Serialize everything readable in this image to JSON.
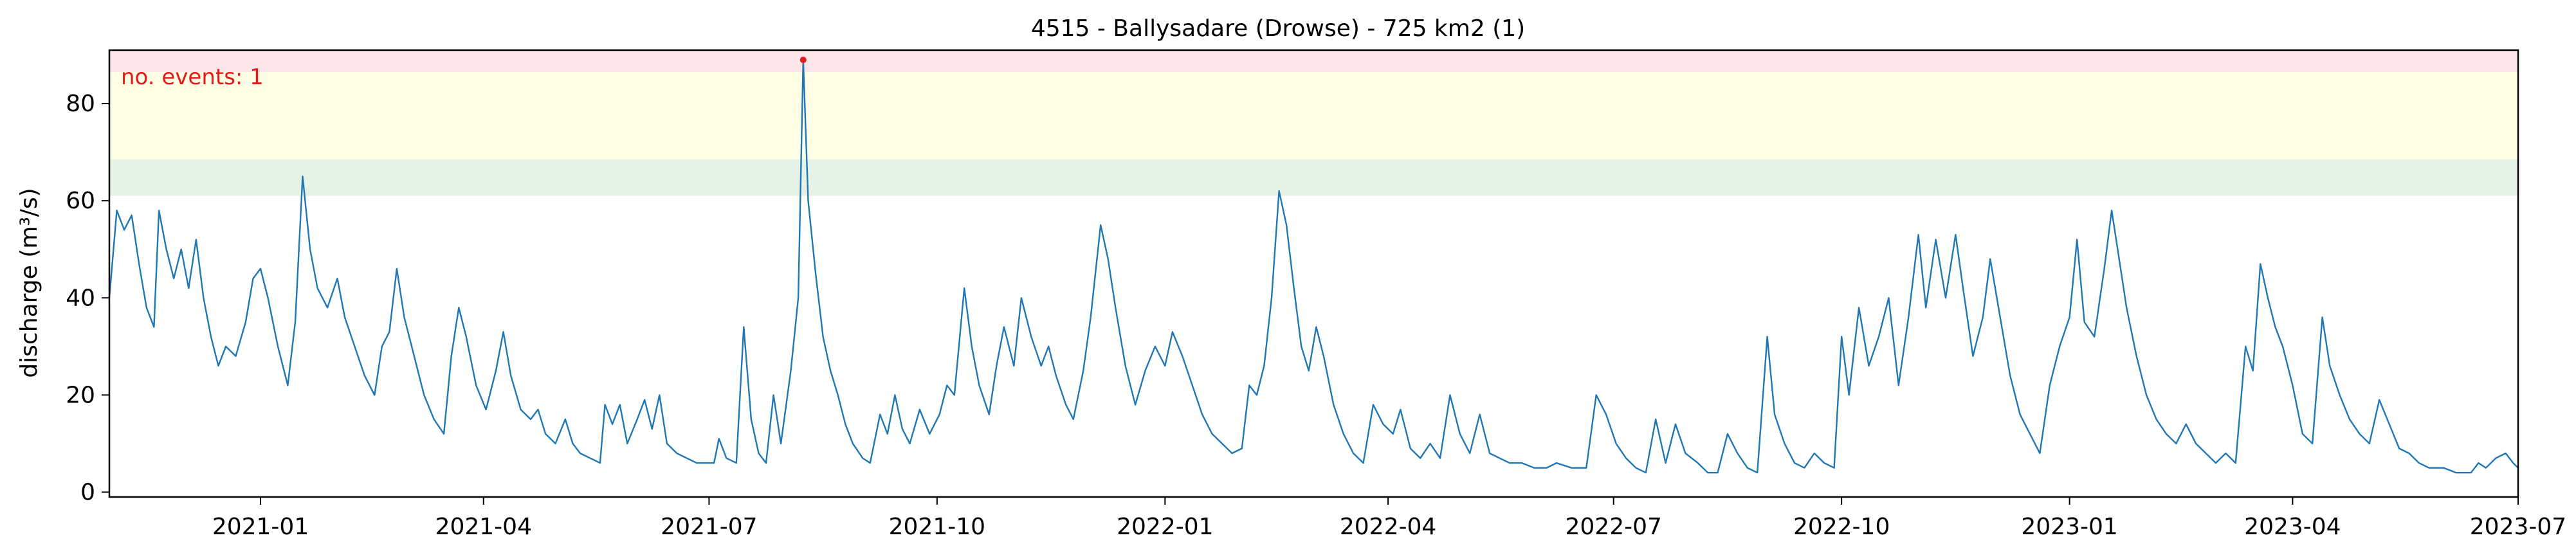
{
  "chart_data": {
    "type": "line",
    "title": "4515 - Ballysadare (Drowse) - 725 km2 (1)",
    "ylabel": "discharge (m³/s)",
    "xlabel": "",
    "xlim": [
      "2020-11-01",
      "2023-07-01"
    ],
    "ylim": [
      -1,
      91
    ],
    "grid": false,
    "xticks": [
      "2021-01-01",
      "2021-04-01",
      "2021-07-01",
      "2021-10-01",
      "2022-01-01",
      "2022-04-01",
      "2022-07-01",
      "2022-10-01",
      "2023-01-01",
      "2023-04-01",
      "2023-07-01"
    ],
    "xtick_labels": [
      "2021-01",
      "2021-04",
      "2021-07",
      "2021-10",
      "2022-01",
      "2022-04",
      "2022-07",
      "2022-10",
      "2023-01",
      "2023-04",
      "2023-07"
    ],
    "yticks": [
      0,
      20,
      40,
      60,
      80
    ],
    "annotation": "no. events: 1",
    "threshold_bands": [
      {
        "from": 61,
        "to": 68.5,
        "color": "#e6f2e6"
      },
      {
        "from": 68.5,
        "to": 86.5,
        "color": "#ffffe6"
      },
      {
        "from": 86.5,
        "to": 91,
        "color": "#fde6ea"
      }
    ],
    "events": [
      {
        "x": "2021-08-08",
        "y": 89
      }
    ],
    "series": [
      {
        "color": "#1f77b4",
        "points": [
          [
            "2020-11-01",
            40
          ],
          [
            "2020-11-04",
            58
          ],
          [
            "2020-11-07",
            54
          ],
          [
            "2020-11-10",
            57
          ],
          [
            "2020-11-13",
            47
          ],
          [
            "2020-11-16",
            38
          ],
          [
            "2020-11-19",
            34
          ],
          [
            "2020-11-21",
            58
          ],
          [
            "2020-11-24",
            50
          ],
          [
            "2020-11-27",
            44
          ],
          [
            "2020-11-30",
            50
          ],
          [
            "2020-12-03",
            42
          ],
          [
            "2020-12-06",
            52
          ],
          [
            "2020-12-09",
            40
          ],
          [
            "2020-12-12",
            32
          ],
          [
            "2020-12-15",
            26
          ],
          [
            "2020-12-18",
            30
          ],
          [
            "2020-12-22",
            28
          ],
          [
            "2020-12-26",
            35
          ],
          [
            "2020-12-29",
            44
          ],
          [
            "2021-01-01",
            46
          ],
          [
            "2021-01-04",
            40
          ],
          [
            "2021-01-08",
            30
          ],
          [
            "2021-01-12",
            22
          ],
          [
            "2021-01-15",
            35
          ],
          [
            "2021-01-18",
            65
          ],
          [
            "2021-01-21",
            50
          ],
          [
            "2021-01-24",
            42
          ],
          [
            "2021-01-28",
            38
          ],
          [
            "2021-02-01",
            44
          ],
          [
            "2021-02-04",
            36
          ],
          [
            "2021-02-08",
            30
          ],
          [
            "2021-02-12",
            24
          ],
          [
            "2021-02-16",
            20
          ],
          [
            "2021-02-19",
            30
          ],
          [
            "2021-02-22",
            33
          ],
          [
            "2021-02-25",
            46
          ],
          [
            "2021-02-28",
            36
          ],
          [
            "2021-03-04",
            28
          ],
          [
            "2021-03-08",
            20
          ],
          [
            "2021-03-12",
            15
          ],
          [
            "2021-03-16",
            12
          ],
          [
            "2021-03-19",
            28
          ],
          [
            "2021-03-22",
            38
          ],
          [
            "2021-03-25",
            32
          ],
          [
            "2021-03-29",
            22
          ],
          [
            "2021-04-02",
            17
          ],
          [
            "2021-04-06",
            25
          ],
          [
            "2021-04-09",
            33
          ],
          [
            "2021-04-12",
            24
          ],
          [
            "2021-04-16",
            17
          ],
          [
            "2021-04-20",
            15
          ],
          [
            "2021-04-23",
            17
          ],
          [
            "2021-04-26",
            12
          ],
          [
            "2021-04-30",
            10
          ],
          [
            "2021-05-04",
            15
          ],
          [
            "2021-05-07",
            10
          ],
          [
            "2021-05-10",
            8
          ],
          [
            "2021-05-14",
            7
          ],
          [
            "2021-05-18",
            6
          ],
          [
            "2021-05-20",
            18
          ],
          [
            "2021-05-23",
            14
          ],
          [
            "2021-05-26",
            18
          ],
          [
            "2021-05-29",
            10
          ],
          [
            "2021-06-02",
            15
          ],
          [
            "2021-06-05",
            19
          ],
          [
            "2021-06-08",
            13
          ],
          [
            "2021-06-11",
            20
          ],
          [
            "2021-06-14",
            10
          ],
          [
            "2021-06-18",
            8
          ],
          [
            "2021-06-22",
            7
          ],
          [
            "2021-06-26",
            6
          ],
          [
            "2021-06-30",
            6
          ],
          [
            "2021-07-03",
            6
          ],
          [
            "2021-07-05",
            11
          ],
          [
            "2021-07-08",
            7
          ],
          [
            "2021-07-12",
            6
          ],
          [
            "2021-07-15",
            34
          ],
          [
            "2021-07-18",
            15
          ],
          [
            "2021-07-21",
            8
          ],
          [
            "2021-07-24",
            6
          ],
          [
            "2021-07-27",
            20
          ],
          [
            "2021-07-30",
            10
          ],
          [
            "2021-08-03",
            25
          ],
          [
            "2021-08-06",
            40
          ],
          [
            "2021-08-08",
            89
          ],
          [
            "2021-08-10",
            60
          ],
          [
            "2021-08-13",
            45
          ],
          [
            "2021-08-16",
            32
          ],
          [
            "2021-08-19",
            25
          ],
          [
            "2021-08-22",
            20
          ],
          [
            "2021-08-25",
            14
          ],
          [
            "2021-08-28",
            10
          ],
          [
            "2021-09-01",
            7
          ],
          [
            "2021-09-04",
            6
          ],
          [
            "2021-09-08",
            16
          ],
          [
            "2021-09-11",
            12
          ],
          [
            "2021-09-14",
            20
          ],
          [
            "2021-09-17",
            13
          ],
          [
            "2021-09-20",
            10
          ],
          [
            "2021-09-24",
            17
          ],
          [
            "2021-09-28",
            12
          ],
          [
            "2021-10-02",
            16
          ],
          [
            "2021-10-05",
            22
          ],
          [
            "2021-10-08",
            20
          ],
          [
            "2021-10-12",
            42
          ],
          [
            "2021-10-15",
            30
          ],
          [
            "2021-10-18",
            22
          ],
          [
            "2021-10-22",
            16
          ],
          [
            "2021-10-25",
            26
          ],
          [
            "2021-10-28",
            34
          ],
          [
            "2021-11-01",
            26
          ],
          [
            "2021-11-04",
            40
          ],
          [
            "2021-11-08",
            32
          ],
          [
            "2021-11-12",
            26
          ],
          [
            "2021-11-15",
            30
          ],
          [
            "2021-11-18",
            24
          ],
          [
            "2021-11-22",
            18
          ],
          [
            "2021-11-25",
            15
          ],
          [
            "2021-11-29",
            25
          ],
          [
            "2021-12-02",
            36
          ],
          [
            "2021-12-06",
            55
          ],
          [
            "2021-12-09",
            48
          ],
          [
            "2021-12-12",
            38
          ],
          [
            "2021-12-16",
            26
          ],
          [
            "2021-12-20",
            18
          ],
          [
            "2021-12-24",
            25
          ],
          [
            "2021-12-28",
            30
          ],
          [
            "2022-01-01",
            26
          ],
          [
            "2022-01-04",
            33
          ],
          [
            "2022-01-08",
            28
          ],
          [
            "2022-01-12",
            22
          ],
          [
            "2022-01-16",
            16
          ],
          [
            "2022-01-20",
            12
          ],
          [
            "2022-01-24",
            10
          ],
          [
            "2022-01-28",
            8
          ],
          [
            "2022-02-01",
            9
          ],
          [
            "2022-02-04",
            22
          ],
          [
            "2022-02-07",
            20
          ],
          [
            "2022-02-10",
            26
          ],
          [
            "2022-02-13",
            40
          ],
          [
            "2022-02-16",
            62
          ],
          [
            "2022-02-19",
            55
          ],
          [
            "2022-02-22",
            42
          ],
          [
            "2022-02-25",
            30
          ],
          [
            "2022-02-28",
            25
          ],
          [
            "2022-03-03",
            34
          ],
          [
            "2022-03-06",
            28
          ],
          [
            "2022-03-10",
            18
          ],
          [
            "2022-03-14",
            12
          ],
          [
            "2022-03-18",
            8
          ],
          [
            "2022-03-22",
            6
          ],
          [
            "2022-03-26",
            18
          ],
          [
            "2022-03-30",
            14
          ],
          [
            "2022-04-03",
            12
          ],
          [
            "2022-04-06",
            17
          ],
          [
            "2022-04-10",
            9
          ],
          [
            "2022-04-14",
            7
          ],
          [
            "2022-04-18",
            10
          ],
          [
            "2022-04-22",
            7
          ],
          [
            "2022-04-26",
            20
          ],
          [
            "2022-04-30",
            12
          ],
          [
            "2022-05-04",
            8
          ],
          [
            "2022-05-08",
            16
          ],
          [
            "2022-05-12",
            8
          ],
          [
            "2022-05-16",
            7
          ],
          [
            "2022-05-20",
            6
          ],
          [
            "2022-05-25",
            6
          ],
          [
            "2022-05-30",
            5
          ],
          [
            "2022-06-04",
            5
          ],
          [
            "2022-06-08",
            6
          ],
          [
            "2022-06-14",
            5
          ],
          [
            "2022-06-20",
            5
          ],
          [
            "2022-06-24",
            20
          ],
          [
            "2022-06-28",
            16
          ],
          [
            "2022-07-02",
            10
          ],
          [
            "2022-07-06",
            7
          ],
          [
            "2022-07-10",
            5
          ],
          [
            "2022-07-14",
            4
          ],
          [
            "2022-07-18",
            15
          ],
          [
            "2022-07-22",
            6
          ],
          [
            "2022-07-26",
            14
          ],
          [
            "2022-07-30",
            8
          ],
          [
            "2022-08-04",
            6
          ],
          [
            "2022-08-08",
            4
          ],
          [
            "2022-08-12",
            4
          ],
          [
            "2022-08-16",
            12
          ],
          [
            "2022-08-20",
            8
          ],
          [
            "2022-08-24",
            5
          ],
          [
            "2022-08-28",
            4
          ],
          [
            "2022-09-01",
            32
          ],
          [
            "2022-09-04",
            16
          ],
          [
            "2022-09-08",
            10
          ],
          [
            "2022-09-12",
            6
          ],
          [
            "2022-09-16",
            5
          ],
          [
            "2022-09-20",
            8
          ],
          [
            "2022-09-24",
            6
          ],
          [
            "2022-09-28",
            5
          ],
          [
            "2022-10-01",
            32
          ],
          [
            "2022-10-04",
            20
          ],
          [
            "2022-10-08",
            38
          ],
          [
            "2022-10-12",
            26
          ],
          [
            "2022-10-16",
            32
          ],
          [
            "2022-10-20",
            40
          ],
          [
            "2022-10-24",
            22
          ],
          [
            "2022-10-28",
            36
          ],
          [
            "2022-11-01",
            53
          ],
          [
            "2022-11-04",
            38
          ],
          [
            "2022-11-08",
            52
          ],
          [
            "2022-11-12",
            40
          ],
          [
            "2022-11-16",
            53
          ],
          [
            "2022-11-19",
            42
          ],
          [
            "2022-11-23",
            28
          ],
          [
            "2022-11-27",
            36
          ],
          [
            "2022-11-30",
            48
          ],
          [
            "2022-12-04",
            36
          ],
          [
            "2022-12-08",
            24
          ],
          [
            "2022-12-12",
            16
          ],
          [
            "2022-12-16",
            12
          ],
          [
            "2022-12-20",
            8
          ],
          [
            "2022-12-24",
            22
          ],
          [
            "2022-12-28",
            30
          ],
          [
            "2023-01-01",
            36
          ],
          [
            "2023-01-04",
            52
          ],
          [
            "2023-01-07",
            35
          ],
          [
            "2023-01-11",
            32
          ],
          [
            "2023-01-15",
            46
          ],
          [
            "2023-01-18",
            58
          ],
          [
            "2023-01-21",
            48
          ],
          [
            "2023-01-24",
            38
          ],
          [
            "2023-01-28",
            28
          ],
          [
            "2023-02-01",
            20
          ],
          [
            "2023-02-05",
            15
          ],
          [
            "2023-02-09",
            12
          ],
          [
            "2023-02-13",
            10
          ],
          [
            "2023-02-17",
            14
          ],
          [
            "2023-02-21",
            10
          ],
          [
            "2023-02-25",
            8
          ],
          [
            "2023-03-01",
            6
          ],
          [
            "2023-03-05",
            8
          ],
          [
            "2023-03-09",
            6
          ],
          [
            "2023-03-13",
            30
          ],
          [
            "2023-03-16",
            25
          ],
          [
            "2023-03-19",
            47
          ],
          [
            "2023-03-22",
            40
          ],
          [
            "2023-03-25",
            34
          ],
          [
            "2023-03-28",
            30
          ],
          [
            "2023-04-01",
            22
          ],
          [
            "2023-04-05",
            12
          ],
          [
            "2023-04-09",
            10
          ],
          [
            "2023-04-13",
            36
          ],
          [
            "2023-04-16",
            26
          ],
          [
            "2023-04-20",
            20
          ],
          [
            "2023-04-24",
            15
          ],
          [
            "2023-04-28",
            12
          ],
          [
            "2023-05-02",
            10
          ],
          [
            "2023-05-06",
            19
          ],
          [
            "2023-05-10",
            14
          ],
          [
            "2023-05-14",
            9
          ],
          [
            "2023-05-18",
            8
          ],
          [
            "2023-05-22",
            6
          ],
          [
            "2023-05-26",
            5
          ],
          [
            "2023-06-01",
            5
          ],
          [
            "2023-06-06",
            4
          ],
          [
            "2023-06-12",
            4
          ],
          [
            "2023-06-15",
            6
          ],
          [
            "2023-06-18",
            5
          ],
          [
            "2023-06-22",
            7
          ],
          [
            "2023-06-26",
            8
          ],
          [
            "2023-06-29",
            6
          ],
          [
            "2023-07-01",
            5
          ]
        ]
      }
    ]
  }
}
